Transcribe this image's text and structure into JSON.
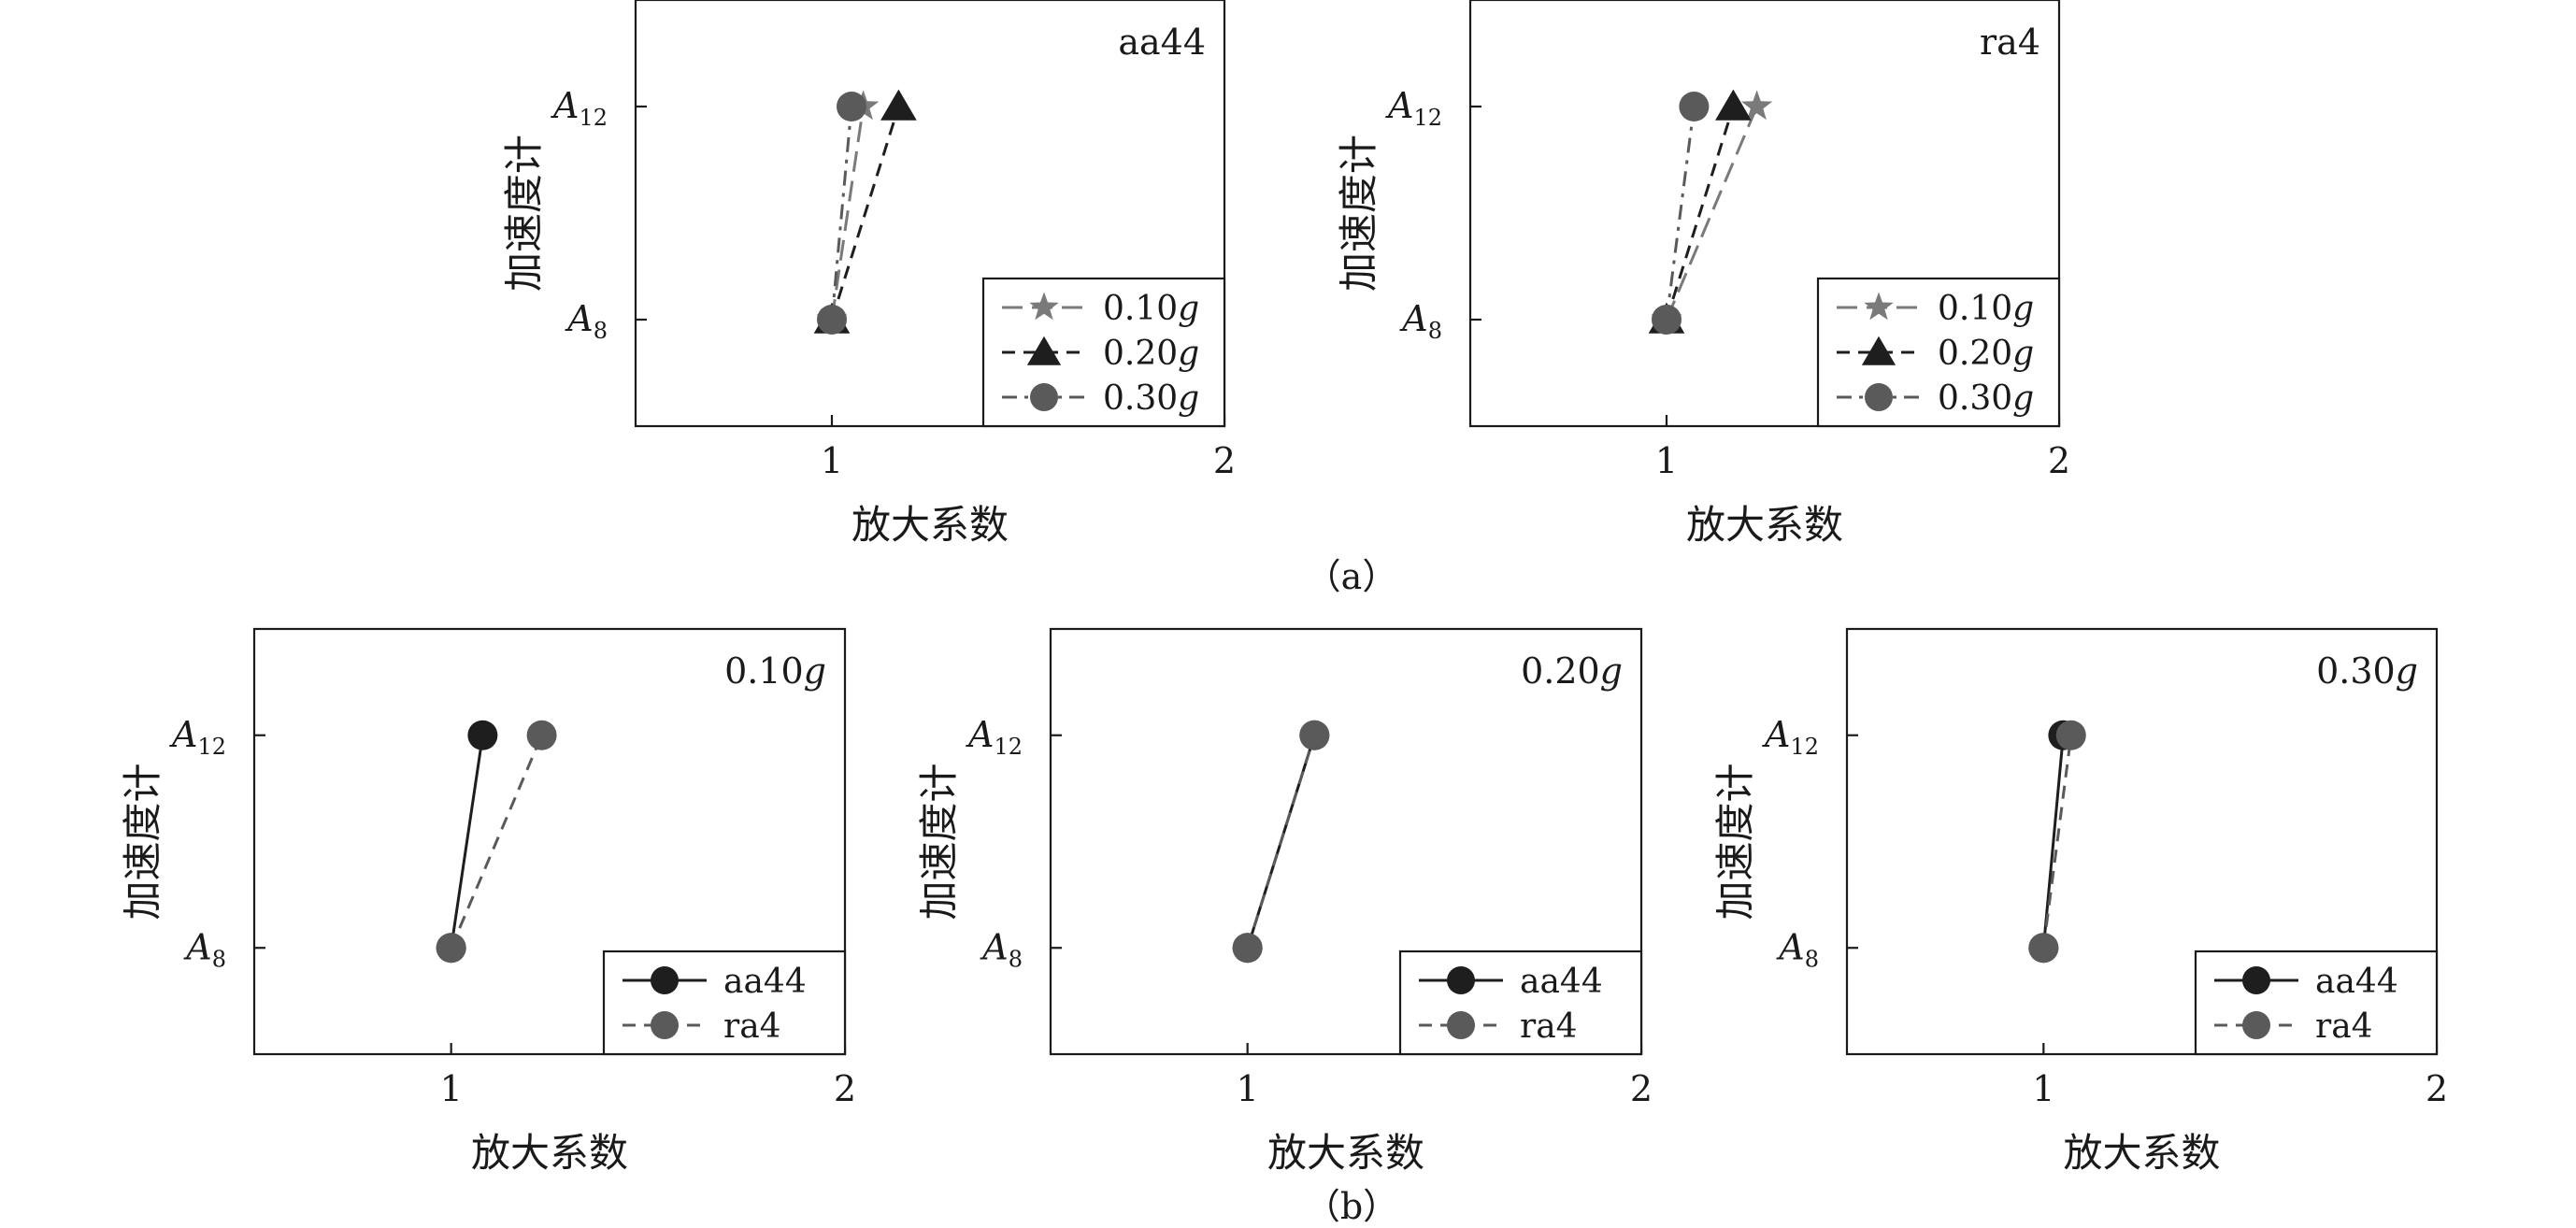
{
  "figure": {
    "captions": [
      "（a）",
      "（b）"
    ]
  },
  "colors": {
    "black": "#1e1e1e",
    "dark_gray": "#5a5a5a",
    "mid_gray": "#7a7a7a"
  },
  "chart_data": [
    {
      "type": "line",
      "group": "a",
      "label": "aa44",
      "xlabel": "放大系数",
      "ylabel": "加速度计",
      "xlim": [
        0.5,
        2
      ],
      "xticks": [
        "1",
        "2"
      ],
      "ylevels": [
        {
          "main": "A",
          "sub": "8"
        },
        {
          "main": "A",
          "sub": "12"
        }
      ],
      "legend": "bottom-right",
      "series": [
        {
          "name": "0.10g",
          "name_num": "0.10",
          "name_unit": "g",
          "marker": "star",
          "dash": "long-dash",
          "color": "#7a7a7a",
          "x": [
            1.0,
            1.08
          ],
          "y": [
            "A8",
            "A12"
          ]
        },
        {
          "name": "0.20g",
          "name_num": "0.20",
          "name_unit": "g",
          "marker": "triangle",
          "dash": "dash",
          "color": "#1e1e1e",
          "x": [
            1.0,
            1.17
          ],
          "y": [
            "A8",
            "A12"
          ]
        },
        {
          "name": "0.30g",
          "name_num": "0.30",
          "name_unit": "g",
          "marker": "circle",
          "dash": "dash-dot",
          "color": "#5a5a5a",
          "x": [
            1.0,
            1.05
          ],
          "y": [
            "A8",
            "A12"
          ]
        }
      ]
    },
    {
      "type": "line",
      "group": "a",
      "label": "ra4",
      "xlabel": "放大系数",
      "ylabel": "加速度计",
      "xlim": [
        0.5,
        2
      ],
      "xticks": [
        "1",
        "2"
      ],
      "ylevels": [
        {
          "main": "A",
          "sub": "8"
        },
        {
          "main": "A",
          "sub": "12"
        }
      ],
      "legend": "bottom-right",
      "series": [
        {
          "name": "0.10g",
          "name_num": "0.10",
          "name_unit": "g",
          "marker": "star",
          "dash": "long-dash",
          "color": "#7a7a7a",
          "x": [
            1.0,
            1.23
          ],
          "y": [
            "A8",
            "A12"
          ]
        },
        {
          "name": "0.20g",
          "name_num": "0.20",
          "name_unit": "g",
          "marker": "triangle",
          "dash": "dash",
          "color": "#1e1e1e",
          "x": [
            1.0,
            1.17
          ],
          "y": [
            "A8",
            "A12"
          ]
        },
        {
          "name": "0.30g",
          "name_num": "0.30",
          "name_unit": "g",
          "marker": "circle",
          "dash": "dash-dot",
          "color": "#5a5a5a",
          "x": [
            1.0,
            1.07
          ],
          "y": [
            "A8",
            "A12"
          ]
        }
      ]
    },
    {
      "type": "line",
      "group": "b",
      "label": "0.10g",
      "label_num": "0.10",
      "label_unit": "g",
      "xlabel": "放大系数",
      "ylabel": "加速度计",
      "xlim": [
        0.5,
        2
      ],
      "xticks": [
        "1",
        "2"
      ],
      "ylevels": [
        {
          "main": "A",
          "sub": "8"
        },
        {
          "main": "A",
          "sub": "12"
        }
      ],
      "legend": "bottom-right",
      "series": [
        {
          "name": "aa44",
          "marker": "circle",
          "dash": "solid",
          "color": "#1e1e1e",
          "x": [
            1.0,
            1.08
          ],
          "y": [
            "A8",
            "A12"
          ]
        },
        {
          "name": "ra4",
          "marker": "circle",
          "dash": "dash",
          "color": "#5a5a5a",
          "x": [
            1.0,
            1.23
          ],
          "y": [
            "A8",
            "A12"
          ]
        }
      ]
    },
    {
      "type": "line",
      "group": "b",
      "label": "0.20g",
      "label_num": "0.20",
      "label_unit": "g",
      "xlabel": "放大系数",
      "ylabel": "加速度计",
      "xlim": [
        0.5,
        2
      ],
      "xticks": [
        "1",
        "2"
      ],
      "ylevels": [
        {
          "main": "A",
          "sub": "8"
        },
        {
          "main": "A",
          "sub": "12"
        }
      ],
      "legend": "bottom-right",
      "series": [
        {
          "name": "aa44",
          "marker": "circle",
          "dash": "solid",
          "color": "#1e1e1e",
          "x": [
            1.0,
            1.17
          ],
          "y": [
            "A8",
            "A12"
          ]
        },
        {
          "name": "ra4",
          "marker": "circle",
          "dash": "dash",
          "color": "#5a5a5a",
          "x": [
            1.0,
            1.17
          ],
          "y": [
            "A8",
            "A12"
          ]
        }
      ]
    },
    {
      "type": "line",
      "group": "b",
      "label": "0.30g",
      "label_num": "0.30",
      "label_unit": "g",
      "xlabel": "放大系数",
      "ylabel": "加速度计",
      "xlim": [
        0.5,
        2
      ],
      "xticks": [
        "1",
        "2"
      ],
      "ylevels": [
        {
          "main": "A",
          "sub": "8"
        },
        {
          "main": "A",
          "sub": "12"
        }
      ],
      "legend": "bottom-right",
      "series": [
        {
          "name": "aa44",
          "marker": "circle",
          "dash": "solid",
          "color": "#1e1e1e",
          "x": [
            1.0,
            1.05
          ],
          "y": [
            "A8",
            "A12"
          ]
        },
        {
          "name": "ra4",
          "marker": "circle",
          "dash": "dash",
          "color": "#5a5a5a",
          "x": [
            1.0,
            1.07
          ],
          "y": [
            "A8",
            "A12"
          ]
        }
      ]
    }
  ]
}
